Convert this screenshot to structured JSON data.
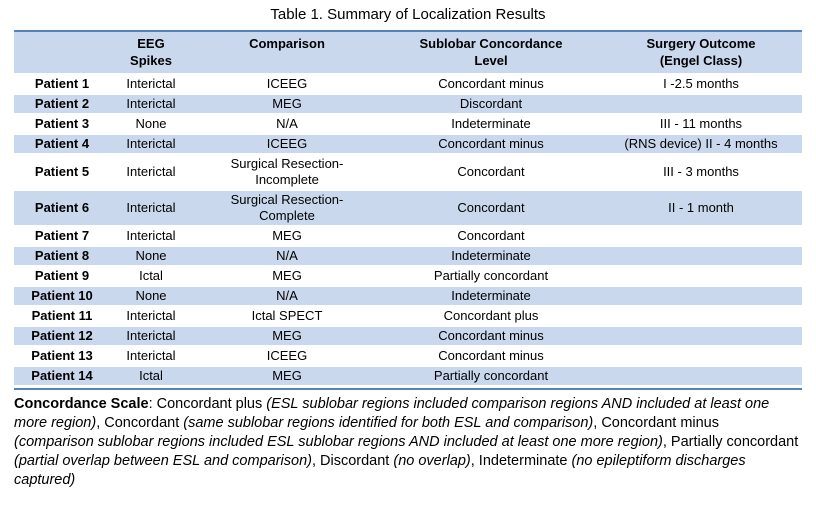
{
  "title": "Table 1. Summary of Localization Results",
  "colors": {
    "header_fill": "#C9D8ED",
    "alt_row_fill": "#C9D8ED",
    "rule_line": "#5583B5",
    "text": "#000000"
  },
  "table": {
    "columns": [
      "",
      "EEG\nSpikes",
      "Comparison",
      "Sublobar Concordance\nLevel",
      "Surgery Outcome\n(Engel Class)"
    ],
    "fields": [
      "patient",
      "eeg_spikes",
      "comparison",
      "concordance",
      "outcome"
    ],
    "rows": [
      {
        "patient": "Patient 1",
        "eeg_spikes": "Interictal",
        "comparison": "ICEEG",
        "concordance": "Concordant minus",
        "outcome": "I -2.5 months"
      },
      {
        "patient": "Patient 2",
        "eeg_spikes": "Interictal",
        "comparison": "MEG",
        "concordance": "Discordant",
        "outcome": ""
      },
      {
        "patient": "Patient 3",
        "eeg_spikes": "None",
        "comparison": "N/A",
        "concordance": "Indeterminate",
        "outcome": "III - 11 months"
      },
      {
        "patient": "Patient 4",
        "eeg_spikes": "Interictal",
        "comparison": "ICEEG",
        "concordance": "Concordant minus",
        "outcome": "(RNS device) II - 4 months"
      },
      {
        "patient": "Patient 5",
        "eeg_spikes": "Interictal",
        "comparison": "Surgical Resection-\nIncomplete",
        "concordance": "Concordant",
        "outcome": "III - 3 months"
      },
      {
        "patient": "Patient 6",
        "eeg_spikes": "Interictal",
        "comparison": "Surgical Resection-\nComplete",
        "concordance": "Concordant",
        "outcome": "II - 1 month"
      },
      {
        "patient": "Patient 7",
        "eeg_spikes": "Interictal",
        "comparison": "MEG",
        "concordance": "Concordant",
        "outcome": ""
      },
      {
        "patient": "Patient 8",
        "eeg_spikes": "None",
        "comparison": "N/A",
        "concordance": "Indeterminate",
        "outcome": ""
      },
      {
        "patient": "Patient 9",
        "eeg_spikes": "Ictal",
        "comparison": "MEG",
        "concordance": "Partially concordant",
        "outcome": ""
      },
      {
        "patient": "Patient 10",
        "eeg_spikes": "None",
        "comparison": "N/A",
        "concordance": "Indeterminate",
        "outcome": ""
      },
      {
        "patient": "Patient 11",
        "eeg_spikes": "Interictal",
        "comparison": "Ictal SPECT",
        "concordance": "Concordant plus",
        "outcome": ""
      },
      {
        "patient": "Patient 12",
        "eeg_spikes": "Interictal",
        "comparison": "MEG",
        "concordance": "Concordant minus",
        "outcome": ""
      },
      {
        "patient": "Patient 13",
        "eeg_spikes": "Interictal",
        "comparison": "ICEEG",
        "concordance": "Concordant minus",
        "outcome": ""
      },
      {
        "patient": "Patient 14",
        "eeg_spikes": "Ictal",
        "comparison": "MEG",
        "concordance": "Partially concordant",
        "outcome": ""
      }
    ]
  },
  "footnote": {
    "segments": [
      {
        "text": "Concordance Scale",
        "bold": true
      },
      {
        "text": ": Concordant plus "
      },
      {
        "text": "(ESL sublobar regions included comparison regions AND included at least one more region)",
        "italic": true
      },
      {
        "text": ", Concordant "
      },
      {
        "text": "(same sublobar regions identified for both ESL and comparison)",
        "italic": true
      },
      {
        "text": ", Concordant minus "
      },
      {
        "text": "(comparison sublobar regions included ESL sublobar regions AND included at least one more region)",
        "italic": true
      },
      {
        "text": ", Partially concordant "
      },
      {
        "text": "(partial overlap between ESL and comparison)",
        "italic": true
      },
      {
        "text": ", Discordant "
      },
      {
        "text": "(no overlap)",
        "italic": true
      },
      {
        "text": ", Indeterminate "
      },
      {
        "text": "(no epileptiform discharges captured)",
        "italic": true
      }
    ]
  }
}
